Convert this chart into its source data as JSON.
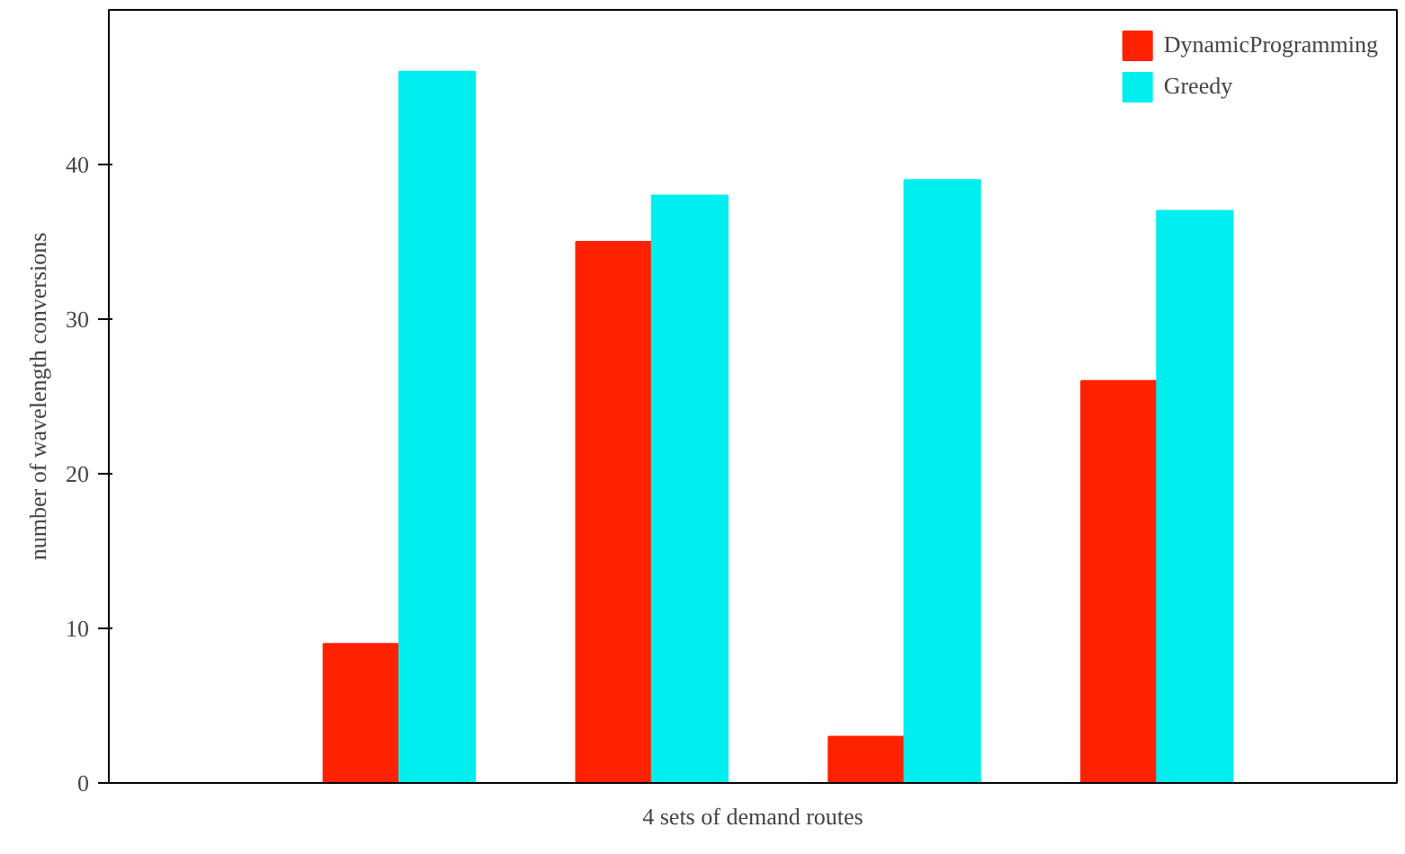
{
  "chart_data": {
    "type": "bar",
    "xlabel": "4 sets of demand routes",
    "ylabel": "number of wavelength conversions",
    "categories": [
      null,
      null,
      null,
      null
    ],
    "series": [
      {
        "name": "DynamicProgramming",
        "color": "#ff2200",
        "values": [
          9,
          35,
          3,
          26
        ]
      },
      {
        "name": "Greedy",
        "color": "#00eeee",
        "values": [
          46,
          38,
          39,
          37
        ]
      }
    ],
    "ylim": [
      0,
      50
    ],
    "yticks": [
      0,
      10,
      20,
      30,
      40
    ],
    "legend": "top right",
    "grid": false
  }
}
